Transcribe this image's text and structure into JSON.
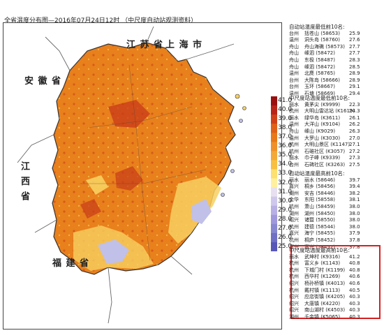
{
  "title": "全省温度分布图—2016年07月24日12时 （中尺度自动站观测资料）",
  "places": {
    "jiangsu": "江 苏 省",
    "shanghai": "上 海 市",
    "anhui": "安 徽 省",
    "jiangxi": "江 西 省",
    "fujian": "福 建 省"
  },
  "colors": {
    "hot": "#e07010",
    "very_hot": "#c83a18",
    "warm": "#f0a020",
    "mild": "#f8d060",
    "cool": "#c0c0e8",
    "sea": "#ffffff"
  },
  "legend": {
    "labels": [
      "41.0",
      "40.0",
      "39.0",
      "38.0",
      "37.0",
      "36.0",
      "35.0",
      "34.0",
      "33.0",
      "32.0",
      "31.0",
      "30.0",
      "29.0",
      "28.0",
      "27.0",
      "26.0",
      "25.0"
    ],
    "colors": [
      "#9a1010",
      "#b82418",
      "#d04018",
      "#e06018",
      "#e87818",
      "#f09028",
      "#f4a838",
      "#f8c040",
      "#fce070",
      "#fff0a0",
      "#e8e0f0",
      "#d0c8ec",
      "#b8b0e4",
      "#a098dc",
      "#8888d0",
      "#7070c4",
      "#5858b8"
    ]
  },
  "panels": [
    {
      "header": "自动站温度最低前10名:",
      "rows": [
        [
          "台州",
          "括苍山 (58653)",
          "25.9"
        ],
        [
          "温州",
          "洞头岛 (58760)",
          "27.6"
        ],
        [
          "舟山",
          "舟山海礁 (58573)",
          "27.7"
        ],
        [
          "舟山",
          "嵊泗 (58472)",
          "27.7"
        ],
        [
          "舟山",
          "东极 (58487)",
          "28.3"
        ],
        [
          "舟山",
          "嵊泗 (58472)",
          "28.5"
        ],
        [
          "温州",
          "北麂 (58765)",
          "28.9"
        ],
        [
          "台州",
          "大陈岛 (58666)",
          "28.9"
        ],
        [
          "台州",
          "玉环 (58667)",
          "29.1"
        ],
        [
          "温州",
          "石塘 (58669)",
          "29.4"
        ]
      ]
    },
    {
      "header": "中尺度站温度最低前10名:",
      "rows": [
        [
          "丽水",
          "黄茅尖 (K9999)",
          "22.3"
        ],
        [
          "杭州",
          "大明山雷达站 (K1619)",
          "24.3"
        ],
        [
          "丽水",
          "绿华岛 (K3611)",
          "26.1"
        ],
        [
          "温州",
          "大洋山 (K9104)",
          "26.2"
        ],
        [
          "舟山",
          "嵊山 (K9029)",
          "26.3"
        ],
        [
          "温州",
          "大罗山 (K3030)",
          "27.0"
        ],
        [
          "杭州",
          "大明山景区 (K1147)",
          "27.1"
        ],
        [
          "杭州",
          "石碓社区 (K3057)",
          "27.2"
        ],
        [
          "丽水",
          "巾子峰 (K9339)",
          "27.3"
        ],
        [
          "台州",
          "石碑社区 (K3263)",
          "27.5"
        ]
      ]
    },
    {
      "header": "自动站温度最高前10名:",
      "rows": [
        [
          "丽水",
          "丽水 (58646)",
          "39.7"
        ],
        [
          "嘉兴",
          "桐乡 (58456)",
          "39.4"
        ],
        [
          "湖州",
          "安吉 (58446)",
          "38.2"
        ],
        [
          "金华",
          "东阳 (58558)",
          "38.1"
        ],
        [
          "杭州",
          "萧山 (58459)",
          "38.0"
        ],
        [
          "湖州",
          "湖州 (58450)",
          "38.0"
        ],
        [
          "绍兴",
          "诸暨 (58550)",
          "38.0"
        ],
        [
          "杭州",
          "建德 (58544)",
          "38.0"
        ],
        [
          "嘉兴",
          "海宁 (58455)",
          "37.9"
        ],
        [
          "杭州",
          "桐庐 (58452)",
          "37.8"
        ],
        [
          "嘉兴",
          "嘉兴 (58452)",
          "37.8"
        ]
      ]
    },
    {
      "header": "中尺度站温度最高前10名:",
      "rows": [
        [
          "丽水",
          "武坤村 (K9316)",
          "41.2"
        ],
        [
          "杭州",
          "富义乡 (K1143)",
          "40.8"
        ],
        [
          "杭州",
          "下城门村 (K1199)",
          "40.8"
        ],
        [
          "杭州",
          "西华村 (K1269)",
          "40.6"
        ],
        [
          "绍兴",
          "杨孙桥镇 (K4013)",
          "40.6"
        ],
        [
          "杭州",
          "戴村镇 (K1113)",
          "40.5"
        ],
        [
          "绍兴",
          "应店街镇 (K4205)",
          "40.3"
        ],
        [
          "绍兴",
          "大唐镇 (K4220)",
          "40.3"
        ],
        [
          "绍兴",
          "南山湖村 (K4503)",
          "40.3"
        ],
        [
          "湖州",
          "千金镇 (K5065)",
          "40.3"
        ]
      ]
    }
  ]
}
